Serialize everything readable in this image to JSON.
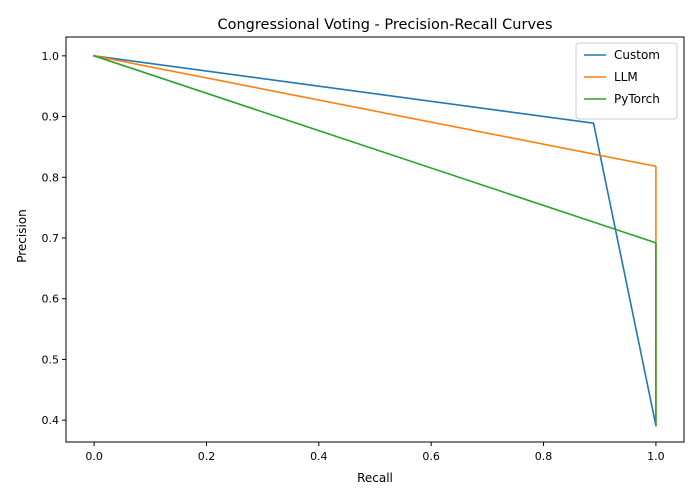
{
  "chart_data": {
    "type": "line",
    "title": "Congressional Voting - Precision-Recall Curves",
    "xlabel": "Recall",
    "ylabel": "Precision",
    "xlim": [
      -0.05,
      1.05
    ],
    "ylim": [
      0.364,
      1.031
    ],
    "x_ticks": [
      0.0,
      0.2,
      0.4,
      0.6,
      0.8,
      1.0
    ],
    "x_tick_labels": [
      "0.0",
      "0.2",
      "0.4",
      "0.6",
      "0.8",
      "1.0"
    ],
    "y_ticks": [
      0.4,
      0.5,
      0.6,
      0.7,
      0.8,
      0.9,
      1.0
    ],
    "y_tick_labels": [
      "0.4",
      "0.5",
      "0.6",
      "0.7",
      "0.8",
      "0.9",
      "1.0"
    ],
    "grid": false,
    "legend_position": "top-right",
    "series": [
      {
        "name": "Custom",
        "color": "#1f77b4",
        "x": [
          0.0,
          0.889,
          1.0
        ],
        "y": [
          1.0,
          0.889,
          0.391
        ]
      },
      {
        "name": "LLM",
        "color": "#ff7f0e",
        "x": [
          0.0,
          1.0,
          1.0
        ],
        "y": [
          1.0,
          0.818,
          0.391
        ]
      },
      {
        "name": "PyTorch",
        "color": "#2ca02c",
        "x": [
          0.0,
          1.0,
          1.0
        ],
        "y": [
          1.0,
          0.692,
          0.391
        ]
      }
    ]
  }
}
